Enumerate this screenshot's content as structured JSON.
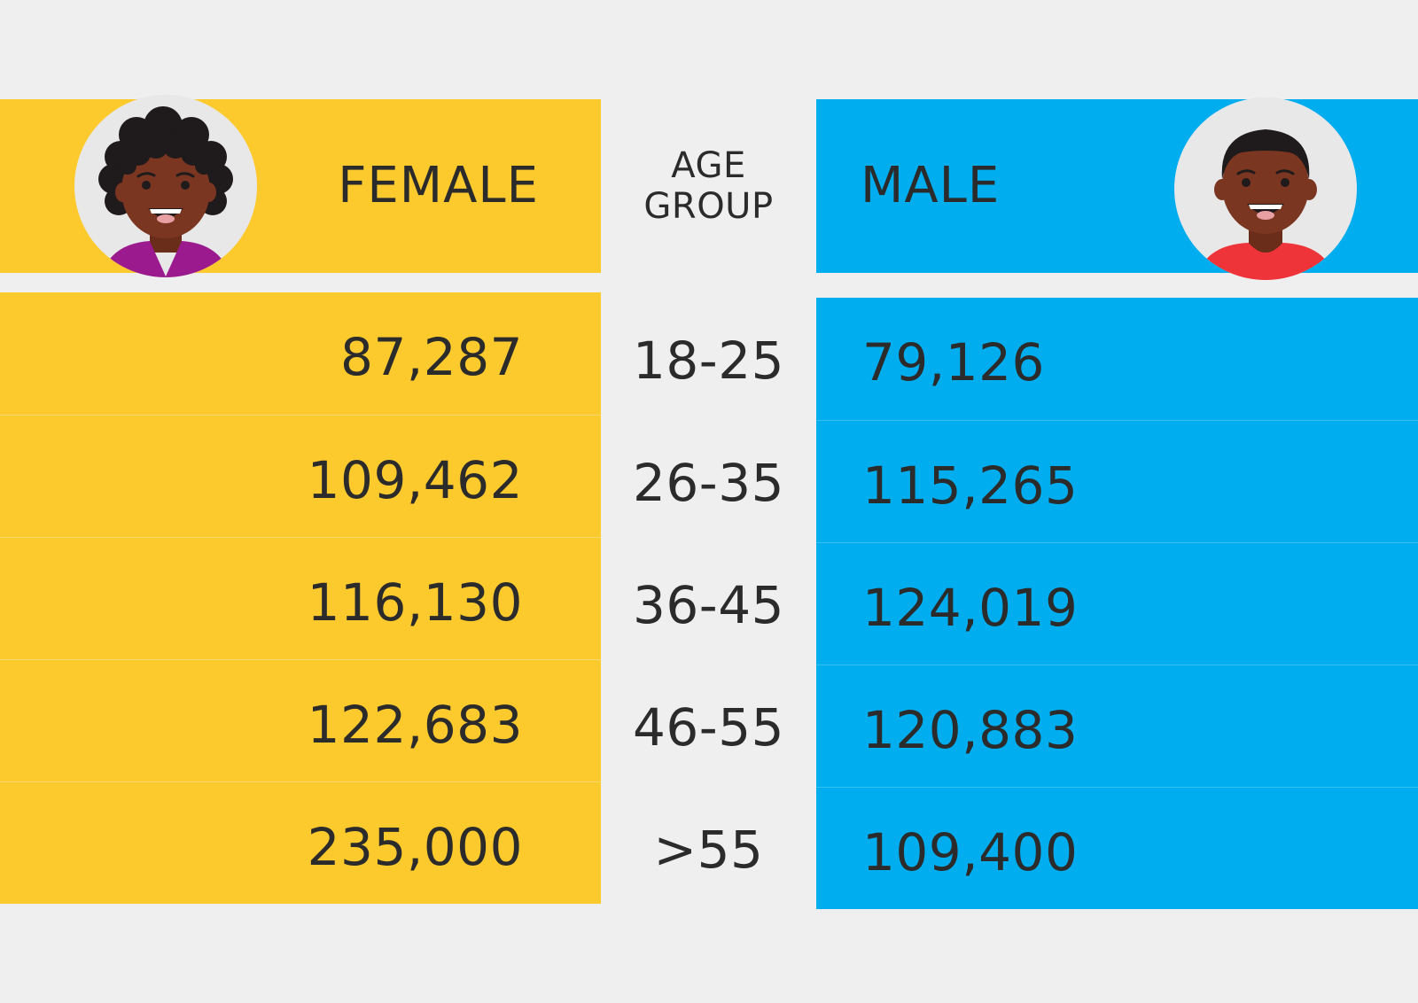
{
  "chart_data": {
    "type": "table",
    "title": "",
    "columns": [
      "FEMALE",
      "AGE GROUP",
      "MALE"
    ],
    "categories": [
      "18-25",
      "26-35",
      "36-45",
      "46-55",
      ">55"
    ],
    "series": [
      {
        "name": "FEMALE",
        "values": [
          87287,
          109462,
          116130,
          122683,
          235000
        ]
      },
      {
        "name": "MALE",
        "values": [
          79126,
          115265,
          124019,
          120883,
          109400
        ]
      }
    ],
    "display_values": {
      "female": [
        "87,287",
        "109,462",
        "116,130",
        "122,683",
        "235,000"
      ],
      "male": [
        "79,126",
        "115,265",
        "124,019",
        "120,883",
        "109,400"
      ]
    }
  },
  "header": {
    "female_label": "FEMALE",
    "male_label": "MALE",
    "age_group_line1": "AGE",
    "age_group_line2": "GROUP"
  },
  "colors": {
    "female_panel": "#fdca2d",
    "male_panel": "#00adee",
    "background": "#efefef",
    "text": "#2b2b2b"
  },
  "icons": {
    "female": "woman-avatar-icon",
    "male": "man-avatar-icon"
  }
}
